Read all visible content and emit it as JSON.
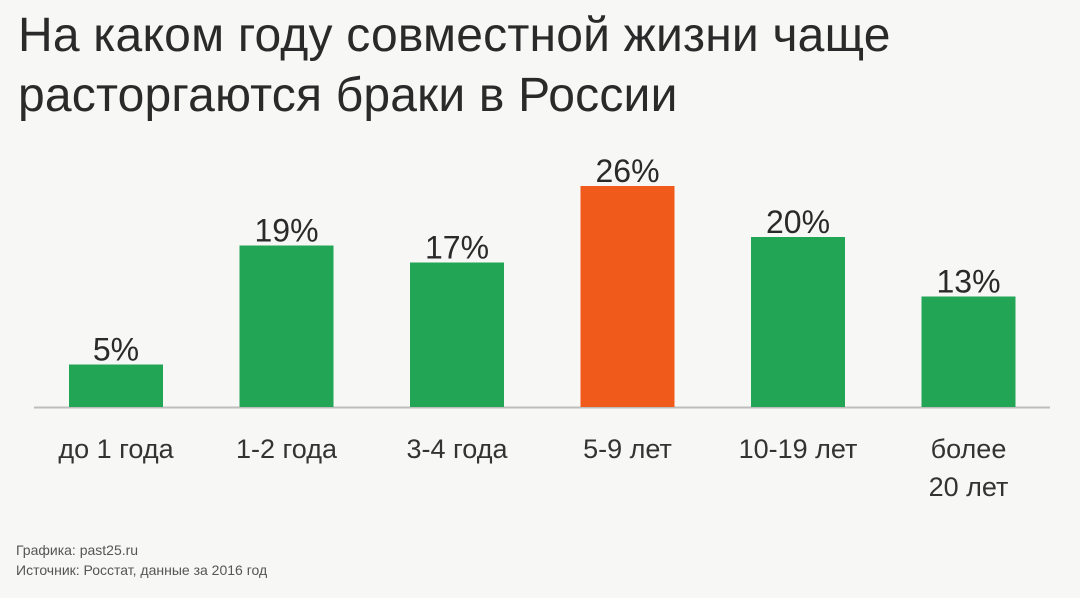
{
  "title_line1": "На каком году совместной жизни чаще",
  "title_line2": "расторгаются браки в России",
  "footer": {
    "line1": "Графика: past25.ru",
    "line2": "Источник: Росстат, данные за 2016 год"
  },
  "colors": {
    "bar": "#22a555",
    "highlight": "#f05a1a",
    "axis": "#bdbdbd",
    "text": "#2a2a2a",
    "label": "#333333"
  },
  "chart_data": {
    "type": "bar",
    "title": "На каком году совместной жизни чаще расторгаются браки в России",
    "categories": [
      [
        "до 1 года"
      ],
      [
        "1-2 года"
      ],
      [
        "3-4 года"
      ],
      [
        "5-9 лет"
      ],
      [
        "10-19 лет"
      ],
      [
        "более",
        "20 лет"
      ]
    ],
    "values": [
      5,
      19,
      17,
      26,
      20,
      13
    ],
    "value_labels": [
      "5%",
      "19%",
      "17%",
      "26%",
      "20%",
      "13%"
    ],
    "highlight_index": 3,
    "ylim": [
      0,
      26
    ],
    "grid": false,
    "legend": "none",
    "xlabel": "",
    "ylabel": ""
  }
}
